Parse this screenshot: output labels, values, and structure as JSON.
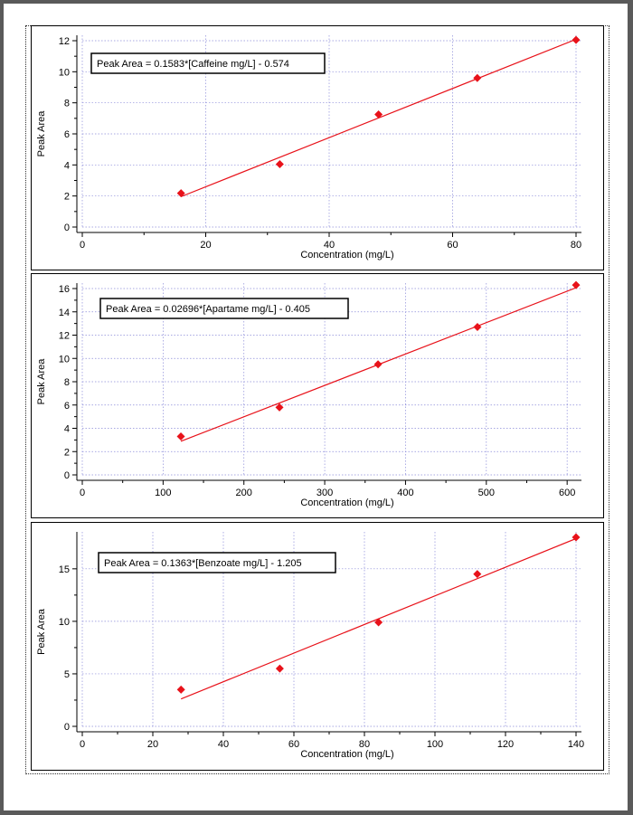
{
  "chart_data": [
    {
      "type": "scatter",
      "series": [
        {
          "x": [
            16,
            32,
            48,
            64,
            80
          ],
          "y": [
            2.18,
            4.05,
            7.25,
            9.6,
            12.05
          ]
        }
      ],
      "fit": {
        "slope": 0.1583,
        "intercept": -0.574,
        "x_range": [
          16,
          80
        ]
      },
      "annotation": "Peak Area = 0.1583*[Caffeine mg/L] - 0.574",
      "xlabel": "Concentration (mg/L)",
      "ylabel": "Peak Area",
      "xlim": [
        0,
        80
      ],
      "ylim": [
        0,
        12
      ],
      "xticks": [
        0,
        20,
        40,
        60,
        80
      ],
      "yticks": [
        0,
        2,
        4,
        6,
        8,
        10,
        12
      ],
      "grid": true,
      "colors": {
        "marker": "#e8121a",
        "line": "#e8121a",
        "grid": "#8c8cd9"
      }
    },
    {
      "type": "scatter",
      "series": [
        {
          "x": [
            122,
            244,
            366,
            489,
            611
          ],
          "y": [
            3.3,
            5.8,
            9.5,
            12.7,
            16.3
          ]
        }
      ],
      "fit": {
        "slope": 0.02696,
        "intercept": -0.405,
        "x_range": [
          122,
          611
        ]
      },
      "annotation": "Peak Area = 0.02696*[Apartame mg/L] - 0.405",
      "xlabel": "Concentration (mg/L)",
      "ylabel": "Peak Area",
      "xlim": [
        0,
        611
      ],
      "ylim": [
        0,
        16
      ],
      "xticks": [
        0,
        100,
        200,
        300,
        400,
        500,
        600
      ],
      "yticks": [
        0,
        2,
        4,
        6,
        8,
        10,
        12,
        14,
        16
      ],
      "grid": true,
      "colors": {
        "marker": "#e8121a",
        "line": "#e8121a",
        "grid": "#8c8cd9"
      }
    },
    {
      "type": "scatter",
      "series": [
        {
          "x": [
            28,
            56,
            84,
            112,
            140
          ],
          "y": [
            3.5,
            5.5,
            9.9,
            14.5,
            18.0
          ]
        }
      ],
      "fit": {
        "slope": 0.1363,
        "intercept": -1.205,
        "x_range": [
          28,
          140
        ]
      },
      "annotation": "Peak Area = 0.1363*[Benzoate mg/L] - 1.205",
      "xlabel": "Concentration (mg/L)",
      "ylabel": "Peak Area",
      "xlim": [
        0,
        140
      ],
      "ylim": [
        0,
        18
      ],
      "xticks": [
        0,
        20,
        40,
        60,
        80,
        100,
        120,
        140
      ],
      "yticks": [
        0,
        5,
        10,
        15
      ],
      "grid": true,
      "colors": {
        "marker": "#e8121a",
        "line": "#e8121a",
        "grid": "#8c8cd9"
      }
    }
  ]
}
